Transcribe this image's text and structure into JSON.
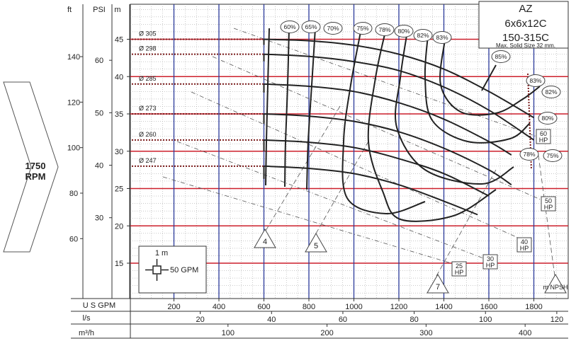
{
  "title_block": {
    "model": "AZ",
    "size": "6x6x12C",
    "code": "150-315C",
    "solid": "Max. Solid Size 32 mm."
  },
  "speed": {
    "value": "1750",
    "unit": "RPM"
  },
  "axes": {
    "ft": {
      "label": "ft",
      "ticks": [
        "60",
        "80",
        "100",
        "120",
        "140"
      ]
    },
    "psi": {
      "label": "PSI",
      "ticks": [
        "30",
        "40",
        "50",
        "60"
      ]
    },
    "m": {
      "label": "m",
      "ticks": [
        "15",
        "20",
        "25",
        "30",
        "35",
        "40",
        "45"
      ]
    },
    "usgpm": {
      "label": "U S GPM",
      "ticks": [
        "200",
        "400",
        "600",
        "800",
        "1000",
        "1200",
        "1400",
        "1600",
        "1800"
      ]
    },
    "ls": {
      "label": "l/s",
      "ticks": [
        "20",
        "40",
        "60",
        "80",
        "100",
        "120"
      ]
    },
    "m3h": {
      "label": "m³/h",
      "ticks": [
        "100",
        "200",
        "300",
        "400"
      ]
    }
  },
  "legend_box": {
    "head": "1 m",
    "flow": "50 GPM"
  },
  "chart_data": {
    "type": "line",
    "xunit": "U S GPM",
    "yunit": "m",
    "xlim": [
      0,
      1900
    ],
    "ylim": [
      10,
      49
    ],
    "series": [
      {
        "name": "Ø 305",
        "x": [
          600,
          800,
          1000,
          1200,
          1400,
          1600,
          1800
        ],
        "y": [
          45,
          44.8,
          44.2,
          43,
          41,
          38,
          34.5
        ]
      },
      {
        "name": "Ø 298",
        "x": [
          600,
          800,
          1000,
          1200,
          1400,
          1600,
          1800
        ],
        "y": [
          43,
          42.7,
          42,
          40.8,
          38.6,
          35.5,
          31.5
        ]
      },
      {
        "name": "Ø 285",
        "x": [
          600,
          800,
          1000,
          1200,
          1400,
          1600,
          1700
        ],
        "y": [
          39,
          38.7,
          38,
          36.5,
          34.3,
          31.3,
          29.5
        ]
      },
      {
        "name": "Ø 273",
        "x": [
          600,
          800,
          1000,
          1200,
          1400,
          1600,
          1700
        ],
        "y": [
          35,
          34.7,
          34,
          32.6,
          30.4,
          27.5,
          25.5
        ]
      },
      {
        "name": "Ø 260",
        "x": [
          600,
          800,
          1000,
          1200,
          1400,
          1600
        ],
        "y": [
          31.5,
          31.2,
          30.5,
          29,
          27,
          24
        ]
      },
      {
        "name": "Ø 247",
        "x": [
          600,
          800,
          1000,
          1200,
          1400,
          1550
        ],
        "y": [
          28,
          27.7,
          27,
          25.5,
          23.3,
          21.5
        ]
      }
    ],
    "efficiency_labels": [
      "60%",
      "65%",
      "70%",
      "75%",
      "78%",
      "80%",
      "82%",
      "83%",
      "85%",
      "83%",
      "82%",
      "80%",
      "78%",
      "75%"
    ],
    "power_labels": [
      {
        "line1": "60",
        "line2": "HP"
      },
      {
        "line1": "50",
        "line2": "HP"
      },
      {
        "line1": "40",
        "line2": "HP"
      },
      {
        "line1": "30",
        "line2": "HP"
      },
      {
        "line1": "25",
        "line2": "HP"
      }
    ],
    "npsh_labels": [
      "4",
      "5",
      "7",
      "m NPSH"
    ]
  }
}
